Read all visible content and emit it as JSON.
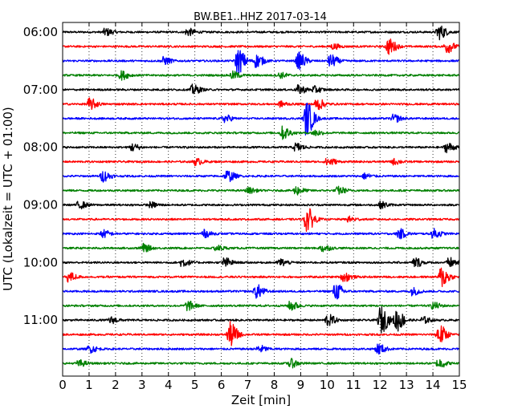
{
  "chart_data": {
    "type": "line",
    "title": "BW.BE1..HHZ 2017-03-14",
    "xlabel": "Zeit  [min]",
    "ylabel": "UTC (Lokalzeit = UTC + 01:00)",
    "xlim": [
      0,
      15
    ],
    "x_ticks": [
      0,
      1,
      2,
      3,
      4,
      5,
      6,
      7,
      8,
      9,
      10,
      11,
      12,
      13,
      14,
      15
    ],
    "x_tick_labels": [
      "0",
      "1",
      "2",
      "3",
      "4",
      "5",
      "6",
      "7",
      "8",
      "9",
      "10",
      "11",
      "12",
      "13",
      "14",
      "15"
    ],
    "y_tick_labels": [
      "06:00",
      "07:00",
      "08:00",
      "09:00",
      "10:00",
      "11:00"
    ],
    "y_tick_rows": [
      0,
      4,
      8,
      12,
      16,
      20
    ],
    "grid": "vertical dotted",
    "row_interval_minutes": 15,
    "row_colors": [
      "#000000",
      "#ff0000",
      "#0000ff",
      "#008000"
    ],
    "rows": [
      {
        "start": "06:00",
        "events": [
          [
            1.6,
            0.35
          ],
          [
            4.7,
            0.35
          ],
          [
            14.2,
            0.7
          ]
        ]
      },
      {
        "start": "06:15",
        "events": [
          [
            12.3,
            0.75
          ],
          [
            14.5,
            0.6
          ],
          [
            10.2,
            0.25
          ]
        ]
      },
      {
        "start": "06:30",
        "events": [
          [
            3.8,
            0.35
          ],
          [
            6.6,
            1.2
          ],
          [
            7.3,
            0.6
          ],
          [
            8.9,
            0.8
          ],
          [
            10.1,
            0.6
          ]
        ]
      },
      {
        "start": "06:45",
        "events": [
          [
            2.2,
            0.4
          ],
          [
            6.4,
            0.35
          ],
          [
            8.2,
            0.25
          ]
        ]
      },
      {
        "start": "07:00",
        "events": [
          [
            4.9,
            0.45
          ],
          [
            8.9,
            0.4
          ],
          [
            9.5,
            0.3
          ]
        ]
      },
      {
        "start": "07:15",
        "events": [
          [
            1.0,
            0.55
          ],
          [
            9.6,
            0.55
          ],
          [
            8.2,
            0.25
          ]
        ]
      },
      {
        "start": "07:30",
        "events": [
          [
            6.1,
            0.35
          ],
          [
            9.2,
            1.6
          ],
          [
            12.5,
            0.35
          ]
        ]
      },
      {
        "start": "07:45",
        "events": [
          [
            8.3,
            0.6
          ],
          [
            9.5,
            0.3
          ]
        ]
      },
      {
        "start": "08:00",
        "events": [
          [
            2.6,
            0.35
          ],
          [
            8.8,
            0.4
          ],
          [
            14.5,
            0.45
          ]
        ]
      },
      {
        "start": "08:15",
        "events": [
          [
            5.0,
            0.3
          ],
          [
            10.0,
            0.4
          ],
          [
            12.5,
            0.25
          ]
        ]
      },
      {
        "start": "08:30",
        "events": [
          [
            1.5,
            0.5
          ],
          [
            6.2,
            0.55
          ],
          [
            11.4,
            0.25
          ]
        ]
      },
      {
        "start": "08:45",
        "events": [
          [
            8.8,
            0.4
          ],
          [
            10.4,
            0.35
          ],
          [
            7.0,
            0.25
          ]
        ]
      },
      {
        "start": "09:00",
        "events": [
          [
            0.6,
            0.35
          ],
          [
            3.3,
            0.25
          ],
          [
            12.0,
            0.3
          ]
        ]
      },
      {
        "start": "09:15",
        "events": [
          [
            9.2,
            1.2
          ],
          [
            10.8,
            0.25
          ]
        ]
      },
      {
        "start": "09:30",
        "events": [
          [
            1.5,
            0.35
          ],
          [
            5.3,
            0.35
          ],
          [
            12.7,
            0.45
          ],
          [
            14.0,
            0.45
          ]
        ]
      },
      {
        "start": "09:45",
        "events": [
          [
            3.0,
            0.4
          ],
          [
            9.8,
            0.35
          ],
          [
            5.8,
            0.25
          ]
        ]
      },
      {
        "start": "10:00",
        "events": [
          [
            4.5,
            0.4
          ],
          [
            6.1,
            0.45
          ],
          [
            8.2,
            0.35
          ],
          [
            13.3,
            0.45
          ],
          [
            14.6,
            0.45
          ]
        ]
      },
      {
        "start": "10:15",
        "events": [
          [
            0.2,
            0.45
          ],
          [
            10.6,
            0.45
          ],
          [
            14.3,
            1.0
          ]
        ]
      },
      {
        "start": "10:30",
        "events": [
          [
            7.3,
            0.65
          ],
          [
            10.3,
            0.8
          ],
          [
            13.2,
            0.35
          ]
        ]
      },
      {
        "start": "10:45",
        "events": [
          [
            4.7,
            0.45
          ],
          [
            8.6,
            0.45
          ],
          [
            14.0,
            0.3
          ]
        ]
      },
      {
        "start": "11:00",
        "events": [
          [
            1.8,
            0.3
          ],
          [
            10.0,
            0.55
          ],
          [
            12.0,
            1.3
          ],
          [
            12.6,
            1.1
          ],
          [
            13.6,
            0.3
          ]
        ]
      },
      {
        "start": "11:15",
        "events": [
          [
            6.3,
            1.2
          ],
          [
            14.2,
            1.0
          ]
        ]
      },
      {
        "start": "11:30",
        "events": [
          [
            1.0,
            0.35
          ],
          [
            7.4,
            0.35
          ],
          [
            11.9,
            0.5
          ]
        ]
      },
      {
        "start": "11:45",
        "events": [
          [
            0.6,
            0.3
          ],
          [
            8.6,
            0.4
          ],
          [
            14.2,
            0.45
          ]
        ]
      }
    ]
  }
}
